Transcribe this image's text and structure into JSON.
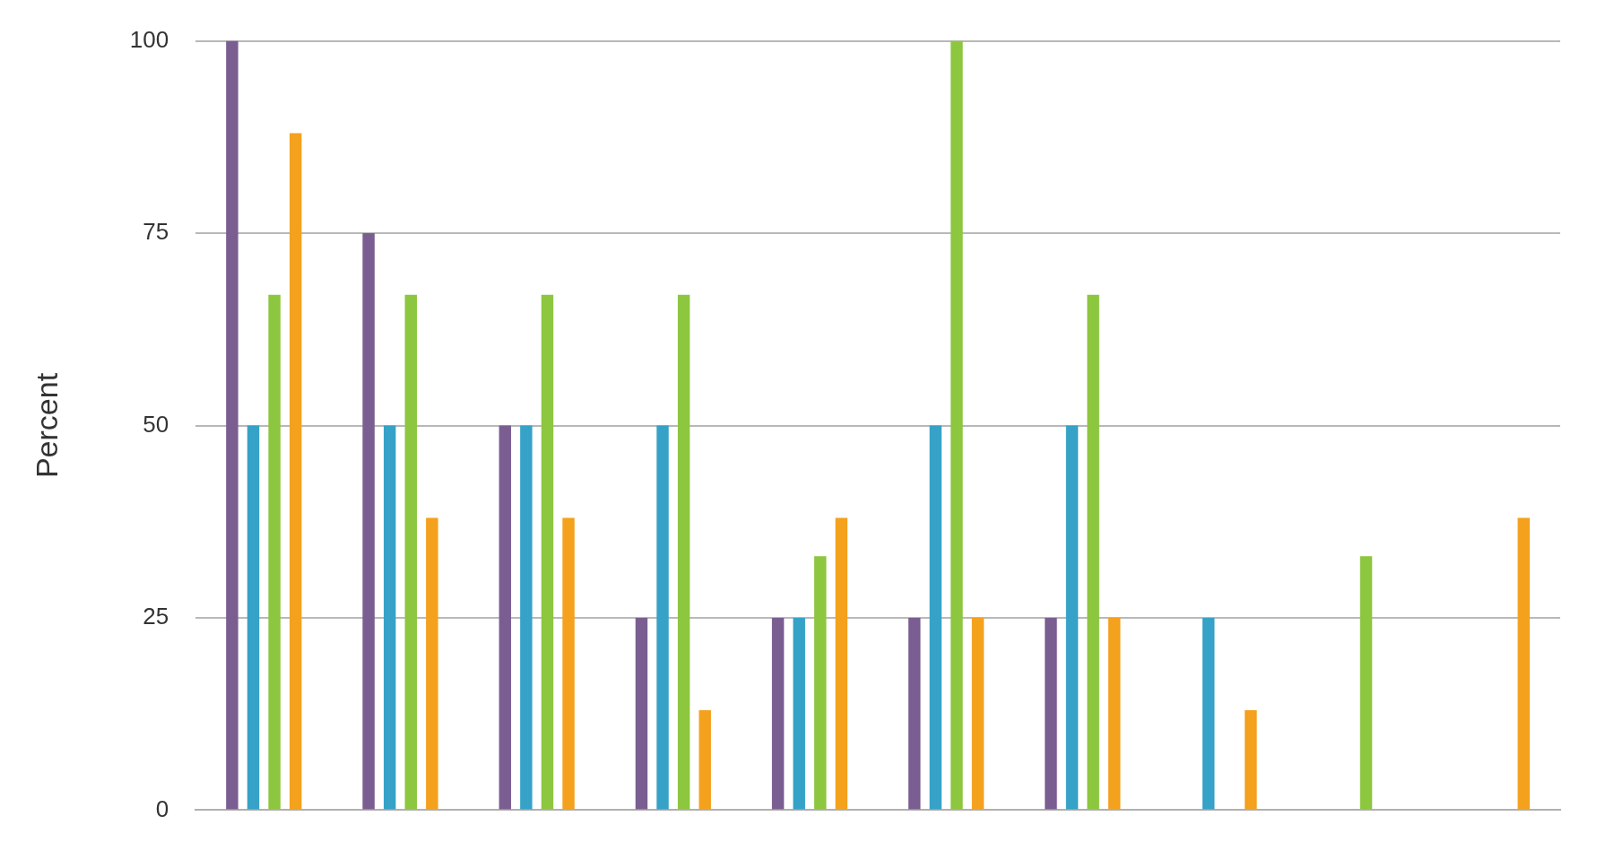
{
  "chart_data": {
    "type": "bar",
    "ylabel": "Percent",
    "categories": [
      null,
      null,
      null,
      null,
      null,
      null,
      null,
      null,
      null,
      null
    ],
    "series": [
      {
        "color": "#7b5e91",
        "values": [
          100,
          75,
          50,
          25,
          25,
          25,
          25,
          0,
          0,
          0
        ]
      },
      {
        "color": "#36a2c7",
        "values": [
          50,
          50,
          50,
          50,
          25,
          50,
          50,
          25,
          0,
          0
        ]
      },
      {
        "color": "#8dc63f",
        "values": [
          67,
          67,
          67,
          67,
          33,
          100,
          67,
          0,
          33,
          0
        ]
      },
      {
        "color": "#f4a11d",
        "values": [
          88,
          38,
          38,
          13,
          38,
          25,
          25,
          13,
          0,
          38
        ]
      }
    ],
    "ylim": [
      0,
      100
    ],
    "yticks": [
      0,
      25,
      50,
      75,
      100
    ],
    "grid": "y",
    "legend": false,
    "tick_labels": "y"
  }
}
